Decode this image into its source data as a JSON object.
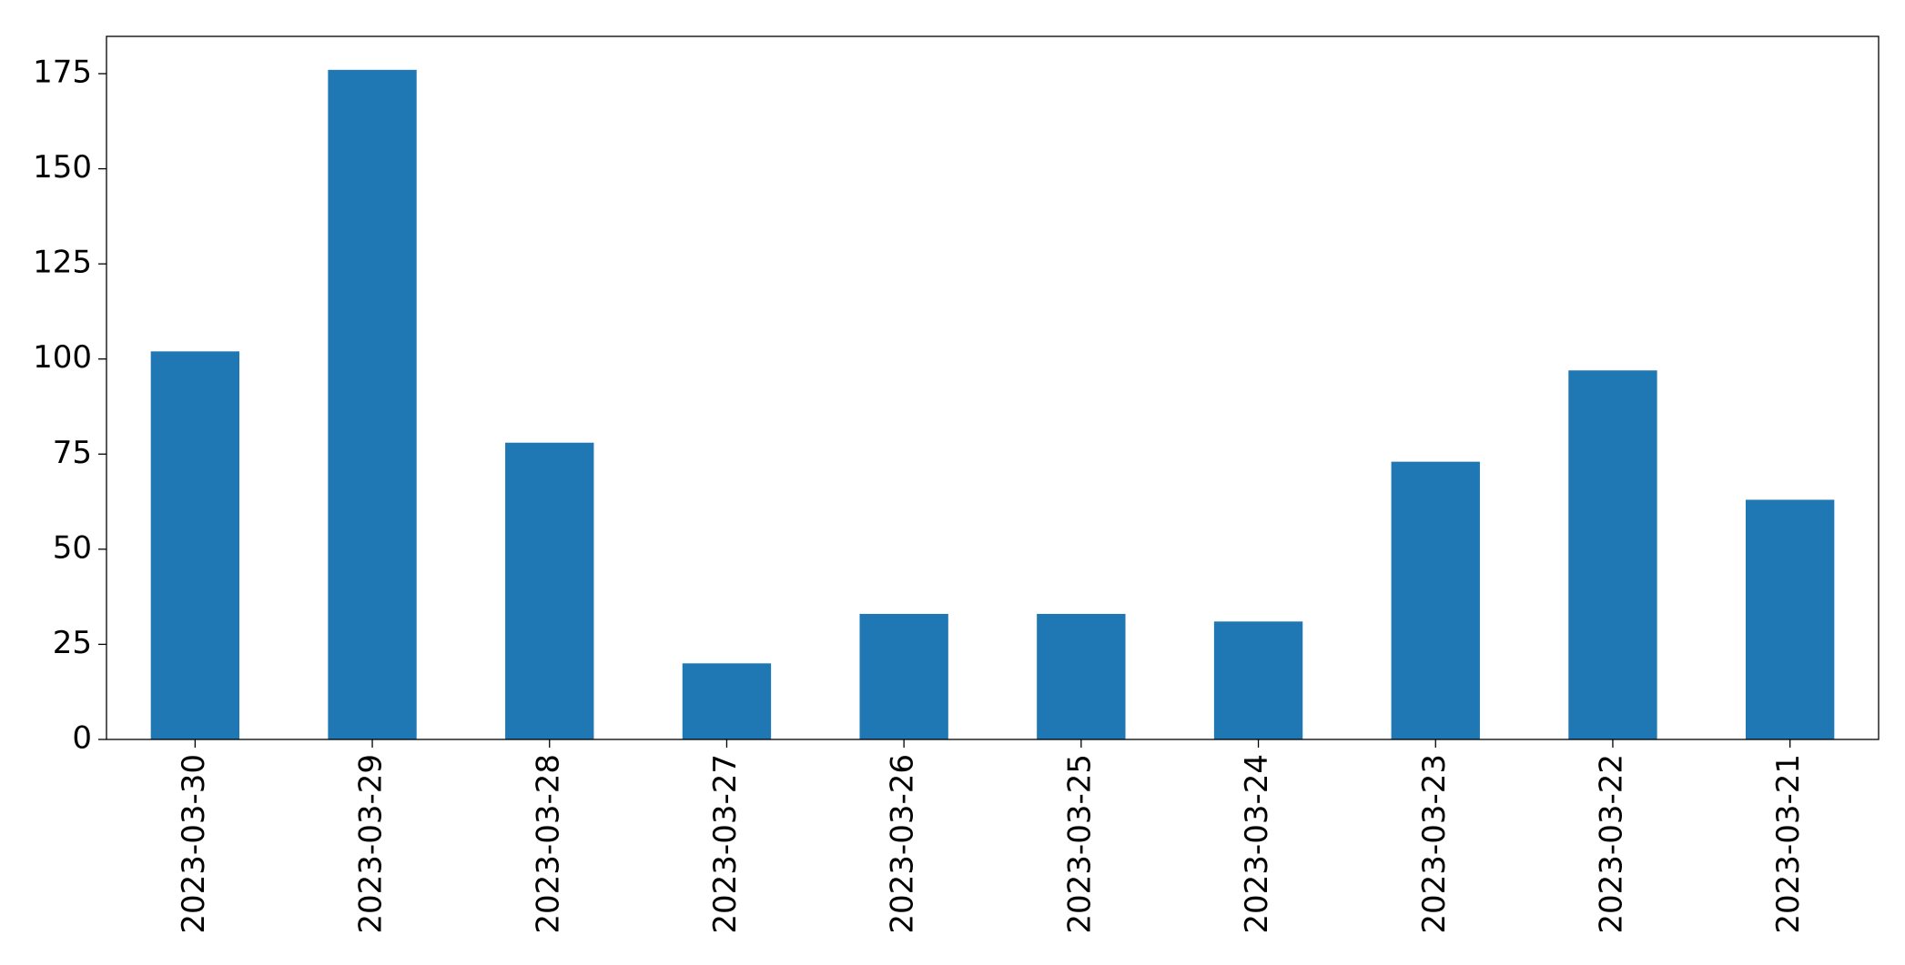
{
  "chart_data": {
    "type": "bar",
    "categories": [
      "2023-03-30",
      "2023-03-29",
      "2023-03-28",
      "2023-03-27",
      "2023-03-26",
      "2023-03-25",
      "2023-03-24",
      "2023-03-23",
      "2023-03-22",
      "2023-03-21"
    ],
    "values": [
      102,
      176,
      78,
      20,
      33,
      33,
      31,
      73,
      97,
      63
    ],
    "color": "#1f77b4",
    "ylim": [
      0,
      184.8
    ],
    "yticks": [
      0,
      25,
      50,
      75,
      100,
      125,
      150,
      175
    ],
    "grid": false
  }
}
